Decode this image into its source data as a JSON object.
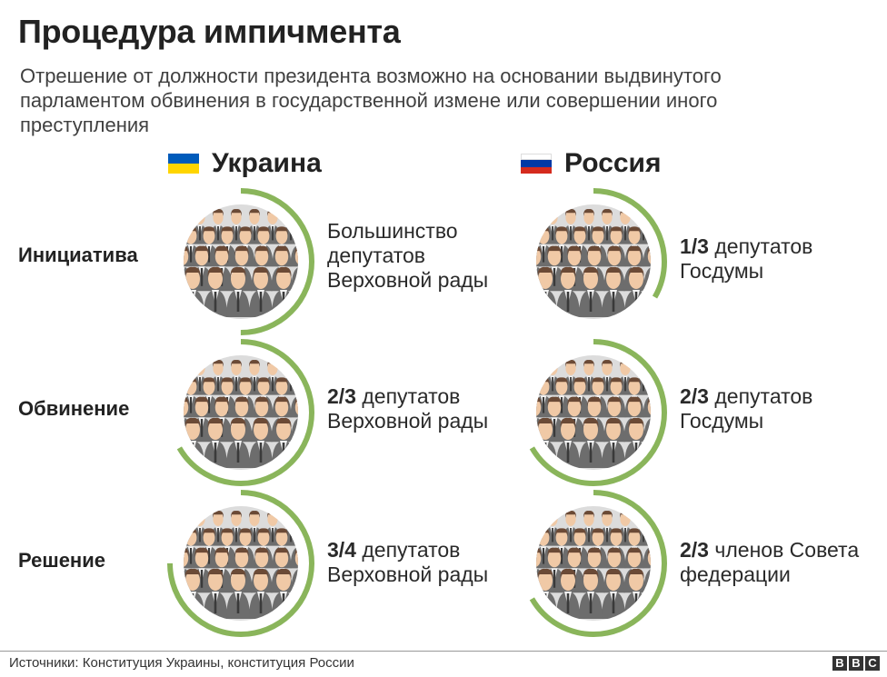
{
  "title": "Процедура импичмента",
  "subtitle": "Отрешение от должности президента возможно на основании выдвинутого парламентом обвинения в государственной измене или совершении иного преступления",
  "colors": {
    "arc": "#8ab55b",
    "flag_ua_top": "#005bbb",
    "flag_ua_bottom": "#ffd500",
    "flag_ru_white": "#ffffff",
    "flag_ru_blue": "#0039a6",
    "flag_ru_red": "#d52b1e",
    "circle_bg": "#dcdcdc",
    "hair": "#6b4a36",
    "skin": "#f0c9a6",
    "suit": "#6d6d6d"
  },
  "countries": {
    "ukraine": {
      "name": "Украина",
      "flag_icon": "flag-ukraine-icon"
    },
    "russia": {
      "name": "Россия",
      "flag_icon": "flag-russia-icon"
    }
  },
  "rows": [
    {
      "label": "Инициатива",
      "ukraine": {
        "bold": "",
        "text": "Большинство депутатов Верховной рады",
        "fraction": 0.5
      },
      "russia": {
        "bold": "1/3",
        "text": " депутатов Госдумы",
        "fraction": 0.3333
      }
    },
    {
      "label": "Обвинение",
      "ukraine": {
        "bold": "2/3",
        "text": " депутатов Верховной рады",
        "fraction": 0.6667
      },
      "russia": {
        "bold": "2/3",
        "text": " депутатов Госдумы",
        "fraction": 0.6667
      }
    },
    {
      "label": "Решение",
      "ukraine": {
        "bold": "3/4",
        "text": " депутатов Верховной рады",
        "fraction": 0.75
      },
      "russia": {
        "bold": "2/3",
        "text": " членов Совета федерации",
        "fraction": 0.6667
      }
    }
  ],
  "footer": {
    "source": "Источники: Конституция Украины, конституция России",
    "logo_letters": [
      "B",
      "B",
      "C"
    ]
  }
}
